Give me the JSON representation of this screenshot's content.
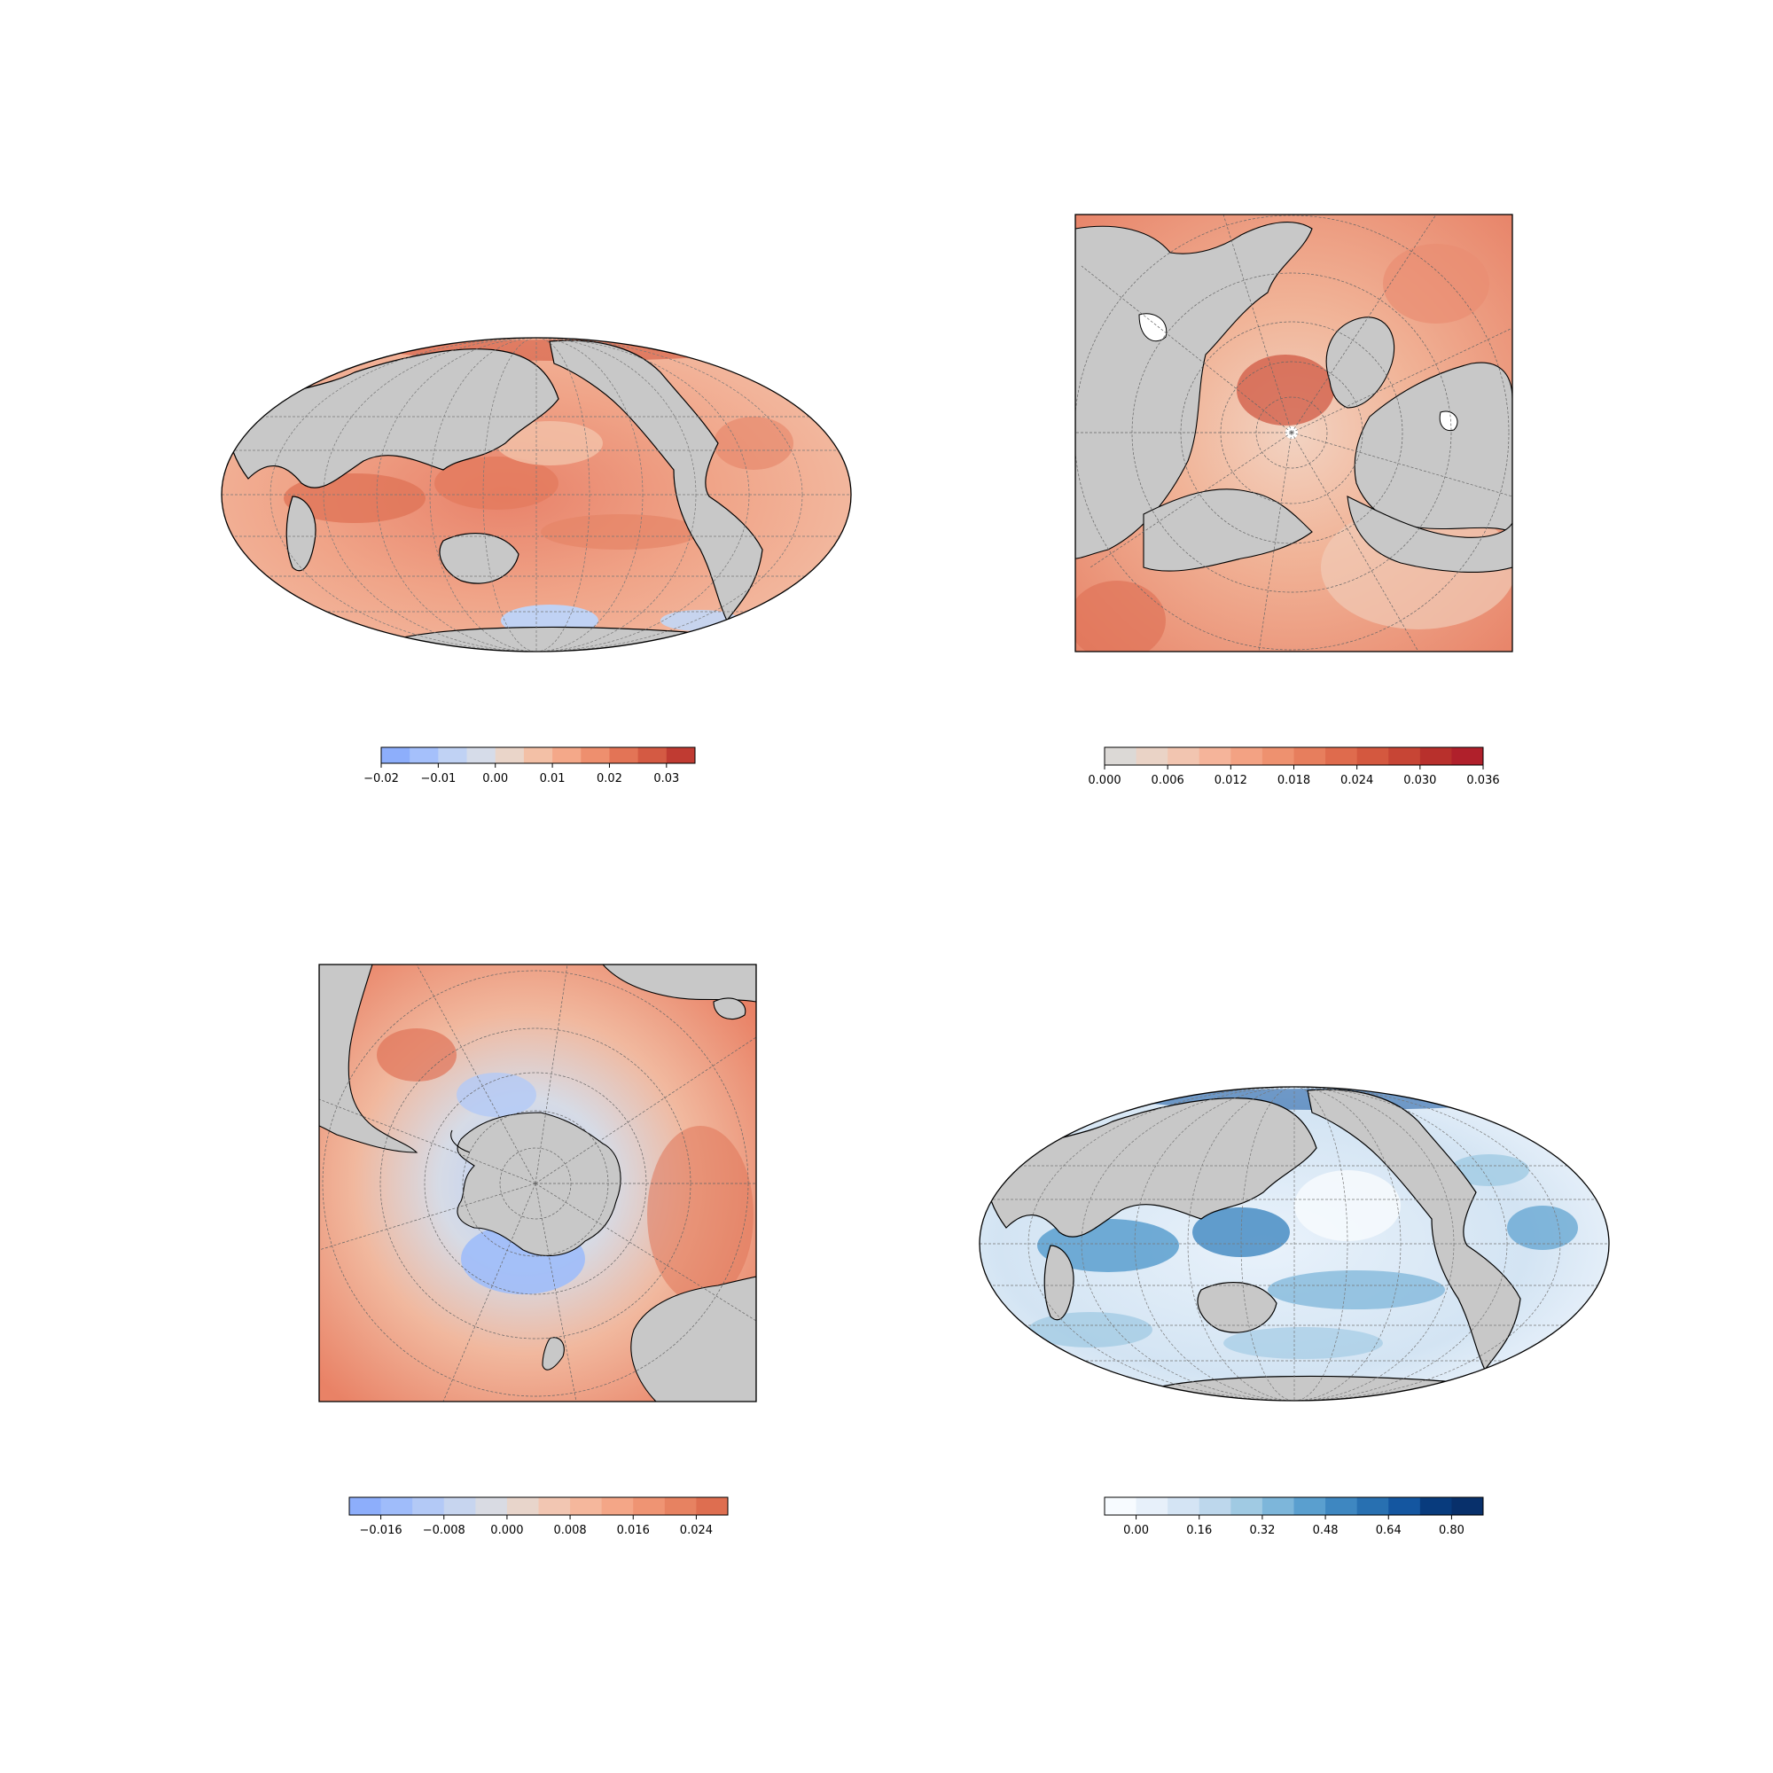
{
  "figure": {
    "panels": [
      {
        "id": "global-anomaly",
        "projection": "mollweide",
        "colormap": "coolwarm",
        "colorbar": {
          "levels": [
            -0.02,
            -0.015,
            -0.01,
            -0.005,
            0.0,
            0.005,
            0.01,
            0.015,
            0.02,
            0.025,
            0.03,
            0.035
          ],
          "ticks": [
            "−0.02",
            "−0.01",
            "0.00",
            "0.01",
            "0.02",
            "0.03"
          ],
          "tick_values": [
            -0.02,
            -0.01,
            0.0,
            0.01,
            0.02,
            0.03
          ],
          "colors": [
            "#8daefb",
            "#a5c0fb",
            "#c0d2f4",
            "#d6dce9",
            "#ead5c9",
            "#f3c0a6",
            "#f4a889",
            "#ee8f6e",
            "#e37456",
            "#d45a43",
            "#c03b32"
          ]
        }
      },
      {
        "id": "north-polar",
        "projection": "north-polar-stereographic",
        "colormap": "coolwarm",
        "colorbar": {
          "levels": [
            0.0,
            0.003,
            0.006,
            0.009,
            0.012,
            0.015,
            0.018,
            0.021,
            0.024,
            0.027,
            0.03,
            0.033,
            0.036
          ],
          "ticks": [
            "0.000",
            "0.006",
            "0.012",
            "0.018",
            "0.024",
            "0.030",
            "0.036"
          ],
          "tick_values": [
            0.0,
            0.006,
            0.012,
            0.018,
            0.024,
            0.03,
            0.036
          ],
          "colors": [
            "#dcd9d6",
            "#ead3c6",
            "#f2c5b0",
            "#f5b49a",
            "#f3a283",
            "#ee916f",
            "#e77e5d",
            "#df6b4d",
            "#d4583f",
            "#c74535",
            "#b8302c",
            "#b0202b"
          ]
        }
      },
      {
        "id": "south-polar",
        "projection": "south-polar-stereographic",
        "colormap": "coolwarm",
        "colorbar": {
          "levels": [
            -0.02,
            -0.016,
            -0.012,
            -0.008,
            -0.004,
            0.0,
            0.004,
            0.008,
            0.012,
            0.016,
            0.02,
            0.024,
            0.028
          ],
          "ticks": [
            "−0.016",
            "−0.008",
            "0.000",
            "0.008",
            "0.016",
            "0.024"
          ],
          "tick_values": [
            -0.016,
            -0.008,
            0.0,
            0.008,
            0.016,
            0.024
          ],
          "colors": [
            "#8daefb",
            "#9fbcfa",
            "#b3c9f6",
            "#c7d5ef",
            "#d9dbe3",
            "#e8d5cb",
            "#f2c6b2",
            "#f5b79c",
            "#f4a687",
            "#ef9473",
            "#e78261",
            "#de6e50"
          ]
        }
      },
      {
        "id": "global-spread",
        "projection": "mollweide",
        "colormap": "blues",
        "colorbar": {
          "levels": [
            -0.08,
            0.0,
            0.08,
            0.16,
            0.24,
            0.32,
            0.4,
            0.48,
            0.56,
            0.64,
            0.72,
            0.8,
            0.88
          ],
          "ticks": [
            "0.00",
            "0.16",
            "0.32",
            "0.48",
            "0.64",
            "0.80"
          ],
          "tick_values": [
            0.0,
            0.16,
            0.32,
            0.48,
            0.64,
            0.8
          ],
          "colors": [
            "#f7fbff",
            "#e7f0fa",
            "#d4e4f4",
            "#bdd7ec",
            "#a0cae3",
            "#7db6da",
            "#5a9fcf",
            "#3e87c1",
            "#2870b1",
            "#1456a0",
            "#083b7d",
            "#08306b"
          ]
        }
      }
    ]
  }
}
